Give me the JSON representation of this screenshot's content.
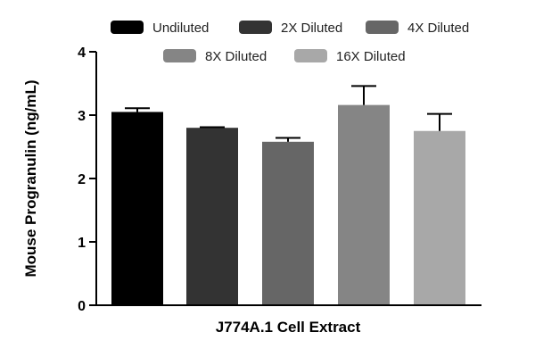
{
  "chart_data": {
    "type": "bar",
    "xlabel": "J774A.1 Cell Extract",
    "ylabel": "Mouse Progranulin (ng/mL)",
    "ylim": [
      0,
      4
    ],
    "yticks": [
      0,
      1,
      2,
      3,
      4
    ],
    "grid": false,
    "legend_position": "top",
    "categories": [
      "Undiluted",
      "2X Diluted",
      "4X Diluted",
      "8X Diluted",
      "16X Diluted"
    ],
    "values": [
      3.05,
      2.8,
      2.58,
      3.16,
      2.75
    ],
    "error_upper": [
      0.06,
      0.01,
      0.06,
      0.3,
      0.27
    ],
    "colors": [
      "#000000",
      "#333333",
      "#666666",
      "#858585",
      "#a8a8a8"
    ],
    "series": [
      {
        "name": "Undiluted",
        "color": "#000000"
      },
      {
        "name": "2X Diluted",
        "color": "#333333"
      },
      {
        "name": "4X Diluted",
        "color": "#666666"
      },
      {
        "name": "8X Diluted",
        "color": "#858585"
      },
      {
        "name": "16X Diluted",
        "color": "#a8a8a8"
      }
    ]
  }
}
